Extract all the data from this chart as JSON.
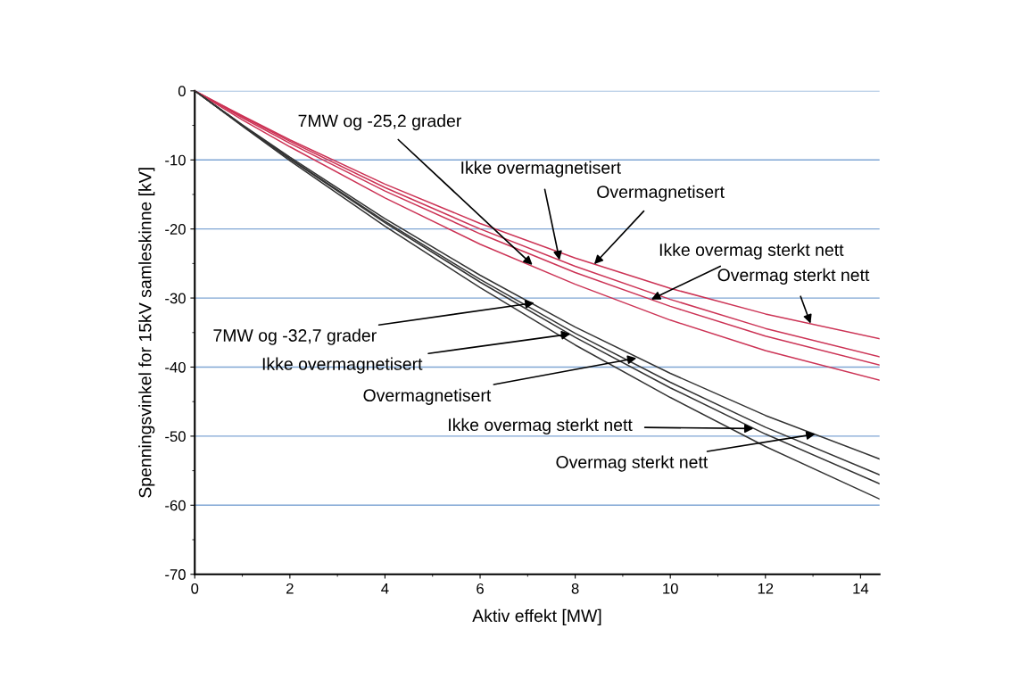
{
  "chart_data": {
    "type": "line",
    "xlabel": "Aktiv effekt [MW]",
    "ylabel": "Spenningsvinkel for 15kV samleskinne [kV]",
    "x": [
      0,
      1,
      2,
      4,
      6,
      8,
      10,
      12,
      14.4
    ],
    "series": [
      {
        "color": "#cc3355",
        "values": [
          0,
          -3.6,
          -7.1,
          -13.5,
          -19.2,
          -24.2,
          -28.6,
          -32.3,
          -35.9
        ]
      },
      {
        "color": "#cc3355",
        "values": [
          0,
          -3.7,
          -7.3,
          -14,
          -20,
          -25.4,
          -30.2,
          -34.4,
          -38.5
        ]
      },
      {
        "color": "#cc3355",
        "values": [
          0,
          -3.9,
          -7.6,
          -14.5,
          -20.7,
          -26.3,
          -31.2,
          -35.5,
          -39.7
        ]
      },
      {
        "color": "#cc3355",
        "values": [
          0,
          -4.2,
          -8.1,
          -15.5,
          -22.2,
          -28,
          -33.2,
          -37.6,
          -41.9
        ]
      },
      {
        "color": "#333333",
        "values": [
          0,
          -4.9,
          -9.6,
          -18.5,
          -26.7,
          -34.2,
          -40.9,
          -47,
          -53.3
        ]
      },
      {
        "color": "#333333",
        "values": [
          0,
          -5,
          -9.8,
          -18.9,
          -27.3,
          -35.1,
          -42.2,
          -48.7,
          -55.6
        ]
      },
      {
        "color": "#333333",
        "values": [
          0,
          -5,
          -9.9,
          -19.1,
          -27.7,
          -35.7,
          -43,
          -49.7,
          -56.9
        ]
      },
      {
        "color": "#333333",
        "values": [
          0,
          -5.1,
          -10.1,
          -19.6,
          -28.5,
          -36.8,
          -44.4,
          -51.5,
          -59.1
        ]
      }
    ],
    "xlim": [
      0,
      14.4
    ],
    "xticks": [
      0,
      2,
      4,
      6,
      8,
      10,
      12,
      14
    ],
    "ylim": [
      -70,
      0
    ],
    "yticks": [
      -70,
      -60,
      -50,
      -40,
      -30,
      -20,
      -10,
      0
    ],
    "grid": "y",
    "legend": false,
    "marker": "none",
    "line_style": "solid",
    "annotations": [
      {
        "text": "7MW og -25,2 grader",
        "x": 7.1,
        "y": -25.2
      },
      {
        "text": "Ikke overmagnetisert",
        "x": 7.67,
        "y": -24.5
      },
      {
        "text": "Overmagnetisert",
        "x": 8.4,
        "y": -25.1
      },
      {
        "text": "Ikke overmag sterkt nett",
        "x": 9.6,
        "y": -30.2
      },
      {
        "text": "Overmag sterkt nett",
        "x": 12.95,
        "y": -33.7
      },
      {
        "text": "7MW og -32,7 grader",
        "x": 7.14,
        "y": -30.7
      },
      {
        "text": "Ikke overmagnetisert",
        "x": 7.9,
        "y": -35.2
      },
      {
        "text": "Overmagnetisert",
        "x": 9.29,
        "y": -38.7
      },
      {
        "text": "Ikke overmag sterkt nett",
        "x": 11.75,
        "y": -48.9
      },
      {
        "text": "Overmag sterkt nett",
        "x": 13.05,
        "y": -49.7
      }
    ]
  }
}
